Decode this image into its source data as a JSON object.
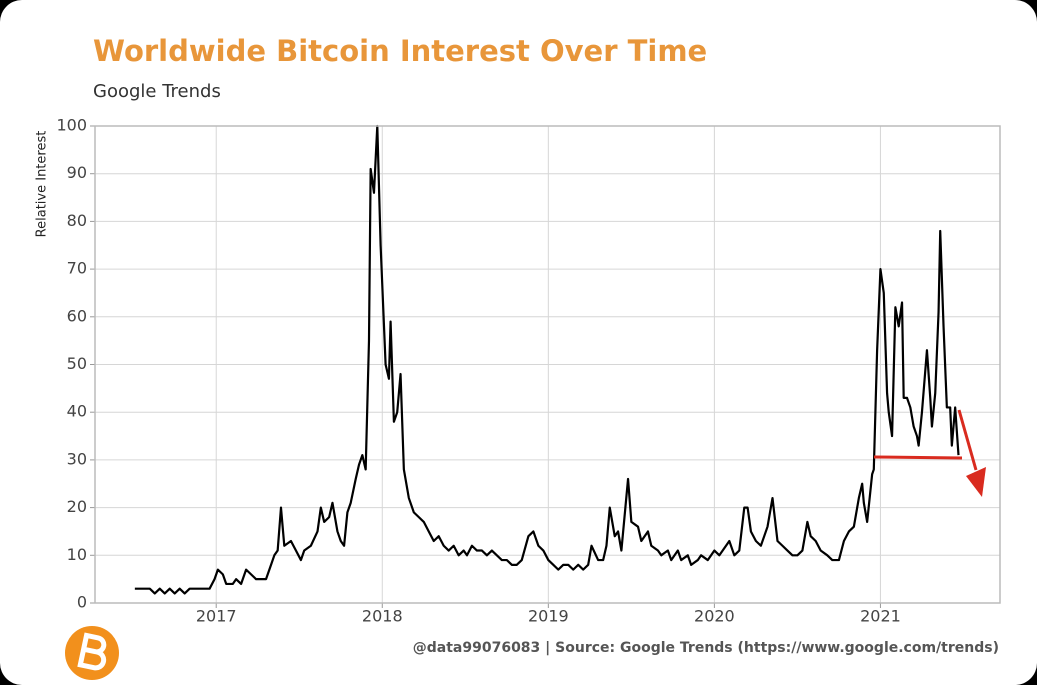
{
  "chart_data": {
    "type": "line",
    "title": "Worldwide Bitcoin Interest Over Time",
    "subtitle": "Google Trends",
    "ylabel": "Relative Interest",
    "footer": "@data99076083 | Source: Google Trends (https://www.google.com/trends)",
    "color": "#000000",
    "grid": true,
    "xlim": [
      2016.27,
      2021.72
    ],
    "xticks": [
      2017,
      2018,
      2019,
      2020,
      2021
    ],
    "ylim": [
      0,
      100
    ],
    "yticks": [
      0,
      10,
      20,
      30,
      40,
      50,
      60,
      70,
      80,
      90,
      100
    ],
    "x": [
      2016.51,
      2016.6,
      2016.63,
      2016.66,
      2016.69,
      2016.72,
      2016.75,
      2016.78,
      2016.81,
      2016.84,
      2016.9,
      2016.96,
      2016.99,
      2017.01,
      2017.04,
      2017.06,
      2017.1,
      2017.12,
      2017.15,
      2017.18,
      2017.21,
      2017.24,
      2017.3,
      2017.33,
      2017.35,
      2017.37,
      2017.39,
      2017.41,
      2017.45,
      2017.48,
      2017.51,
      2017.53,
      2017.57,
      2017.61,
      2017.63,
      2017.65,
      2017.68,
      2017.7,
      2017.73,
      2017.75,
      2017.77,
      2017.79,
      2017.81,
      2017.84,
      2017.86,
      2017.88,
      2017.9,
      2017.92,
      2017.93,
      2017.95,
      2017.97,
      2017.99,
      2018.02,
      2018.04,
      2018.05,
      2018.07,
      2018.09,
      2018.11,
      2018.13,
      2018.16,
      2018.19,
      2018.22,
      2018.25,
      2018.28,
      2018.31,
      2018.34,
      2018.37,
      2018.4,
      2018.43,
      2018.46,
      2018.49,
      2018.51,
      2018.54,
      2018.57,
      2018.6,
      2018.63,
      2018.66,
      2018.69,
      2018.72,
      2018.75,
      2018.78,
      2018.81,
      2018.84,
      2018.88,
      2018.91,
      2018.94,
      2018.97,
      2019.0,
      2019.03,
      2019.06,
      2019.09,
      2019.12,
      2019.15,
      2019.18,
      2019.21,
      2019.24,
      2019.26,
      2019.3,
      2019.33,
      2019.35,
      2019.37,
      2019.4,
      2019.42,
      2019.44,
      2019.48,
      2019.5,
      2019.54,
      2019.56,
      2019.6,
      2019.62,
      2019.66,
      2019.68,
      2019.72,
      2019.74,
      2019.78,
      2019.8,
      2019.84,
      2019.86,
      2019.9,
      2019.92,
      2019.96,
      2020.0,
      2020.03,
      2020.05,
      2020.09,
      2020.12,
      2020.15,
      2020.18,
      2020.2,
      2020.22,
      2020.25,
      2020.28,
      2020.32,
      2020.35,
      2020.38,
      2020.41,
      2020.44,
      2020.47,
      2020.5,
      2020.53,
      2020.56,
      2020.58,
      2020.61,
      2020.64,
      2020.68,
      2020.71,
      2020.75,
      2020.78,
      2020.81,
      2020.84,
      2020.87,
      2020.89,
      2020.9,
      2020.92,
      2020.95,
      2020.96,
      2020.98,
      2021.0,
      2021.02,
      2021.04,
      2021.05,
      2021.07,
      2021.09,
      2021.11,
      2021.13,
      2021.14,
      2021.16,
      2021.18,
      2021.2,
      2021.22,
      2021.23,
      2021.25,
      2021.28,
      2021.3,
      2021.31,
      2021.33,
      2021.35,
      2021.36,
      2021.38,
      2021.4,
      2021.42,
      2021.43,
      2021.45,
      2021.47
    ],
    "values": [
      3,
      3,
      2,
      3,
      2,
      3,
      2,
      3,
      2,
      3,
      3,
      3,
      5,
      7,
      6,
      4,
      4,
      5,
      4,
      7,
      6,
      5,
      5,
      8,
      10,
      11,
      20,
      12,
      13,
      11,
      9,
      11,
      12,
      15,
      20,
      17,
      18,
      21,
      15,
      13,
      12,
      19,
      21,
      26,
      29,
      31,
      28,
      55,
      91,
      86,
      100,
      75,
      50,
      47,
      59,
      38,
      40,
      48,
      28,
      22,
      19,
      18,
      17,
      15,
      13,
      14,
      12,
      11,
      12,
      10,
      11,
      10,
      12,
      11,
      11,
      10,
      11,
      10,
      9,
      9,
      8,
      8,
      9,
      14,
      15,
      12,
      11,
      9,
      8,
      7,
      8,
      8,
      7,
      8,
      7,
      8,
      12,
      9,
      9,
      12,
      20,
      14,
      15,
      11,
      26,
      17,
      16,
      13,
      15,
      12,
      11,
      10,
      11,
      9,
      11,
      9,
      10,
      8,
      9,
      10,
      9,
      11,
      10,
      11,
      13,
      10,
      11,
      20,
      20,
      15,
      13,
      12,
      16,
      22,
      13,
      12,
      11,
      10,
      10,
      11,
      17,
      14,
      13,
      11,
      10,
      9,
      9,
      13,
      15,
      16,
      22,
      25,
      21,
      17,
      27,
      28,
      53,
      70,
      65,
      44,
      40,
      35,
      62,
      58,
      63,
      43,
      43,
      41,
      37,
      35,
      33,
      40,
      53,
      43,
      37,
      44,
      61,
      78,
      58,
      41,
      41,
      33,
      41,
      31
    ]
  }
}
